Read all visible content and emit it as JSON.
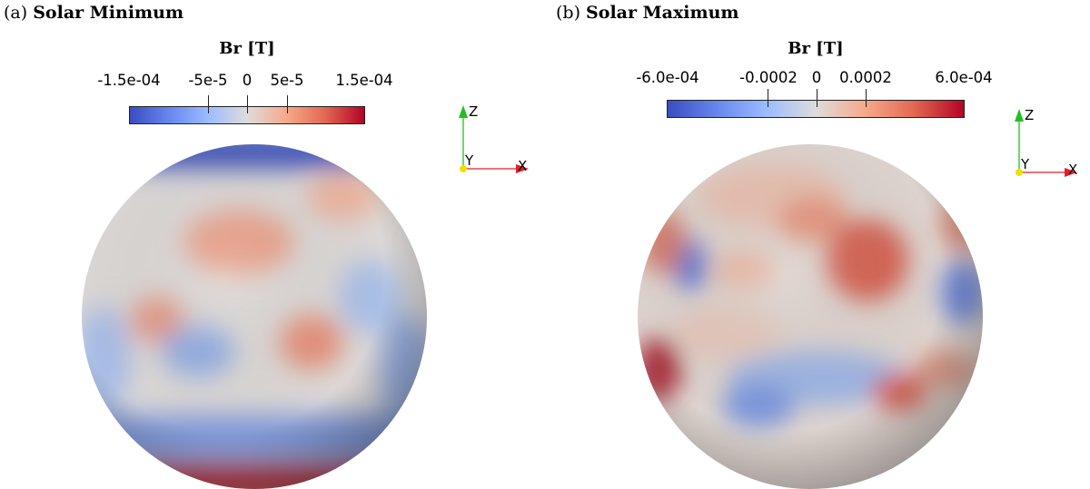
{
  "figure": {
    "panels": [
      {
        "id": "a",
        "caption_prefix": "(a)",
        "caption_title": "Solar Minimum",
        "colorbar": {
          "title": "Br [T]",
          "ticks": [
            "-1.5e-04",
            "-5e-5",
            "0",
            "5e-5",
            "1.5e-04"
          ],
          "tick_values": [
            -0.00015,
            -5e-05,
            0,
            5e-05,
            0.00015
          ],
          "range": [
            -0.00015,
            0.00015
          ],
          "colormap": "Cool to Warm"
        },
        "axes_triad": {
          "z": "Z",
          "y": "Y",
          "x": "X"
        }
      },
      {
        "id": "b",
        "caption_prefix": "(b)",
        "caption_title": "Solar Maximum",
        "colorbar": {
          "title": "Br [T]",
          "ticks": [
            "-6.0e-04",
            "-0.0002",
            "0",
            "0.0002",
            "6.0e-04"
          ],
          "tick_values": [
            -0.0006,
            -0.0002,
            0,
            0.0002,
            0.0006
          ],
          "range": [
            -0.0006,
            0.0006
          ],
          "colormap": "Cool to Warm"
        },
        "axes_triad": {
          "z": "Z",
          "y": "Y",
          "x": "X"
        }
      }
    ],
    "colors": {
      "cold": "#3b4cc0",
      "neutral": "#dddcdc",
      "warm": "#b40426",
      "axis_x": "#e0202a",
      "axis_y": "#f0e000",
      "axis_z": "#20c020"
    }
  }
}
